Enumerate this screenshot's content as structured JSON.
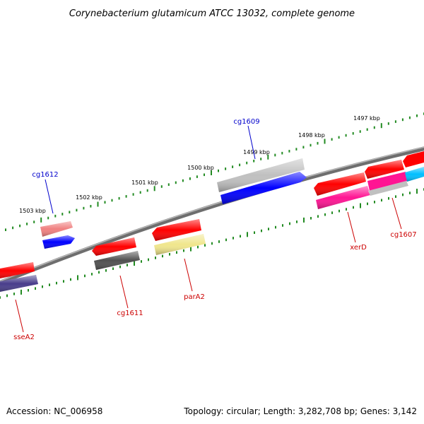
{
  "title": "Corynebacterium glutamicum ATCC 13032, complete genome",
  "footer": {
    "accession": "Accession: NC_006958",
    "summary": "Topology: circular; Length: 3,282,708 bp; Genes: 3,142"
  },
  "scale_labels": [
    "1503 kbp",
    "1502 kbp",
    "1501 kbp",
    "1500 kbp",
    "1499 kbp",
    "1498 kbp",
    "1497 kbp"
  ],
  "gene_labels": {
    "top": [
      "cg1612",
      "cg1609"
    ],
    "bottom": [
      "sseA2",
      "cg1611",
      "parA2",
      "xerD",
      "cg1607"
    ]
  },
  "colors": {
    "backbone": "#808080",
    "tick": "#228b22",
    "label_top": "#0000cc",
    "label_bottom": "#cc0000",
    "red": "#ff0000",
    "blue": "#0000ff",
    "salmon": "#f08080",
    "light_gray": "#c0c0c0",
    "dark_gray": "#505050",
    "khaki": "#f0e68c",
    "slate": "#483d8b",
    "pink": "#ff1493",
    "cyan": "#00bfff"
  }
}
